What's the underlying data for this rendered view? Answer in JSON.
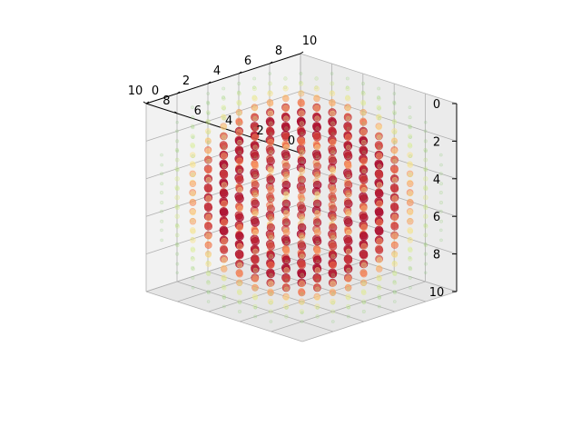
{
  "chart_data": {
    "type": "scatter",
    "projection": "3d",
    "title": "",
    "xlabel": "",
    "ylabel": "",
    "zlabel": "",
    "xlim": [
      0,
      10
    ],
    "ylim": [
      0,
      10
    ],
    "zlim": [
      0,
      10
    ],
    "z_inverted": true,
    "grid": true,
    "legend": "none",
    "colormap": "Spectral (red = high, yellow = mid, green = low)",
    "x_ticks": [
      "0",
      "2",
      "4",
      "6",
      "8",
      "10"
    ],
    "y_ticks": [
      "0",
      "2",
      "4",
      "6",
      "8",
      "10"
    ],
    "z_ticks": [
      "0",
      "2",
      "4",
      "6",
      "8",
      "10"
    ],
    "grid_points": {
      "x": [
        0,
        1,
        2,
        3,
        4,
        5,
        6,
        7,
        8,
        9,
        10
      ],
      "y": [
        0,
        1,
        2,
        3,
        4,
        5,
        6,
        7,
        8,
        9,
        10
      ],
      "z": [
        0,
        1,
        2,
        3,
        4,
        5,
        6,
        7,
        8,
        9,
        10
      ]
    },
    "value_description": "Each grid point (x,y,z) is a marker whose color, size and opacity encode a value that is highest on a spherical shell centered at (5,5,5) and lowest far from it",
    "shell_center": [
      5,
      5,
      5
    ],
    "shell_radius": 4,
    "pane_colors": [
      "#f2f2f2",
      "#ebebeb",
      "#e6e6e6"
    ]
  }
}
